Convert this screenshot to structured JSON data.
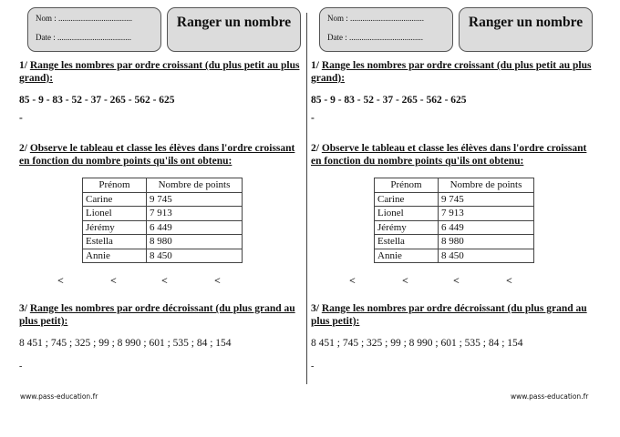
{
  "header": {
    "name_label": "Nom : ....................................",
    "date_label": "Date : ....................................",
    "title": "Ranger un nombre"
  },
  "exercise1": {
    "number": "1/",
    "instruction": "Range les nombres par ordre croissant (du plus petit au plus grand):",
    "numbers": "85  -  9 -  83  -  52  -  37 - 265 - 562 - 625",
    "answer_dash": "-"
  },
  "exercise2": {
    "number": "2/",
    "instruction": "Observe le tableau et classe les élèves dans l'ordre croissant en fonction du nombre points qu'ils ont obtenu:",
    "table": {
      "headers": [
        "Prénom",
        "Nombre de points"
      ],
      "rows": [
        [
          "Carine",
          "9 745"
        ],
        [
          "Lionel",
          "7 913"
        ],
        [
          "Jérémy",
          "6 449"
        ],
        [
          "Estella",
          "8 980"
        ],
        [
          "Annie",
          "8 450"
        ]
      ]
    },
    "less_than": [
      "<",
      "<",
      "<",
      "<"
    ]
  },
  "exercise3": {
    "number": "3/",
    "instruction": "Range les nombres par ordre décroissant (du plus grand au plus petit):",
    "numbers": "8 451 ; 745 ; 325 ; 99 ; 8 990 ; 601 ; 535 ; 84 ; 154",
    "answer_dash": "-"
  },
  "footer": {
    "website": "www.pass-education.fr"
  }
}
